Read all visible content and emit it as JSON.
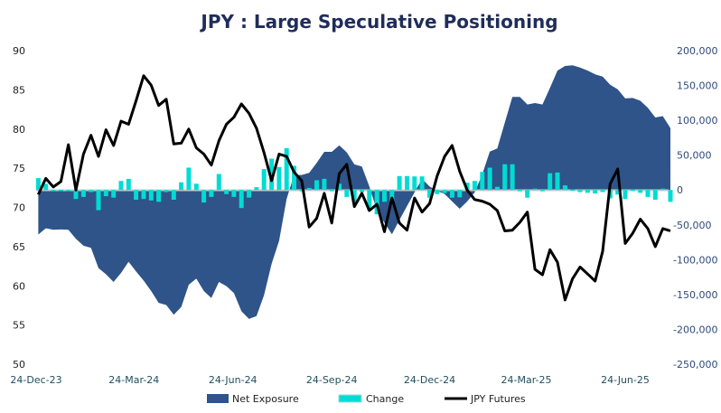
{
  "chart_data": {
    "type": "combo",
    "title": "JPY : Large Speculative Positioning",
    "colors": {
      "net_exposure": "#2E5489",
      "change": "#00DCD4",
      "jpy_futures": "#000000",
      "title": "#1F2D5A"
    },
    "legend_position": "bottom",
    "grid": false,
    "x_start": "2023-12-26",
    "x_step_days": 7,
    "x_ticks": [
      "24-Dec-23",
      "24-Mar-24",
      "24-Jun-24",
      "24-Sep-24",
      "24-Dec-24",
      "24-Mar-25",
      "24-Jun-25"
    ],
    "x_tick_dates": [
      "2023-12-24",
      "2024-03-24",
      "2024-06-24",
      "2024-09-24",
      "2024-12-24",
      "2025-03-24",
      "2025-06-24"
    ],
    "left_axis": {
      "min": 50,
      "max": 90,
      "ticks": [
        "50",
        "55",
        "60",
        "65",
        "70",
        "75",
        "80",
        "85",
        "90"
      ]
    },
    "right_axis": {
      "min": -250000,
      "max": 200000,
      "ticks": [
        "-250,000",
        "-200,000",
        "-150,000",
        "-100,000",
        "-50,000",
        "0",
        "50,000",
        "100,000",
        "150,000",
        "200,000"
      ]
    },
    "series": [
      {
        "name": "Net Exposure",
        "type": "area",
        "axis": "right",
        "values": [
          -63900,
          -55000,
          -57000,
          -56600,
          -57000,
          -70000,
          -80000,
          -83000,
          -112000,
          -121000,
          -132000,
          -119000,
          -103000,
          -117000,
          -130000,
          -145000,
          -162000,
          -165000,
          -179000,
          -168000,
          -136000,
          -127000,
          -145000,
          -155000,
          -132000,
          -138000,
          -148000,
          -174000,
          -185000,
          -181000,
          -151000,
          -106000,
          -73000,
          -13000,
          21600,
          21600,
          24600,
          38900,
          54800,
          54800,
          63900,
          54000,
          36700,
          33700,
          5000,
          -30000,
          -47000,
          -63500,
          -43000,
          -23000,
          -3500,
          16000,
          5000,
          -1300,
          -5700,
          -16500,
          -27000,
          -16500,
          -3500,
          22600,
          55000,
          59600,
          96600,
          133500,
          133500,
          122700,
          124800,
          122700,
          146600,
          171400,
          178000,
          179000,
          175700,
          171400,
          166000,
          162700,
          151000,
          144400,
          131400,
          132000,
          128000,
          118000,
          104000,
          106000,
          88700
        ]
      },
      {
        "name": "Change",
        "type": "bar",
        "axis": "right",
        "values": [
          17000,
          8900,
          -2000,
          400,
          -400,
          -13000,
          -10000,
          -3000,
          -29000,
          -9000,
          -11000,
          13000,
          16000,
          -14000,
          -13000,
          -15000,
          -17000,
          -3000,
          -14000,
          11000,
          32000,
          9000,
          -18000,
          -10000,
          23000,
          -6000,
          -10000,
          -26000,
          -11000,
          4000,
          30000,
          45000,
          33000,
          60000,
          34600,
          0,
          3000,
          14000,
          16000,
          0,
          9000,
          -10000,
          -17000,
          -3000,
          -29000,
          -35000,
          -17000,
          -16500,
          20000,
          20000,
          19500,
          19500,
          -11000,
          -6000,
          -4400,
          -11000,
          -10500,
          10500,
          13000,
          26000,
          32000,
          4600,
          37000,
          37000,
          0,
          -11000,
          2000,
          -2000,
          24000,
          25000,
          6600,
          1000,
          -3000,
          -4000,
          -5000,
          -3000,
          -12000,
          -6600,
          -13000,
          600,
          -4000,
          -10000,
          -14000,
          2000,
          -17000
        ]
      },
      {
        "name": "JPY Futures",
        "type": "line",
        "axis": "left",
        "values": [
          71.65,
          73.7,
          72.6,
          73.3,
          78.0,
          72.2,
          76.8,
          79.2,
          76.5,
          79.9,
          77.9,
          81.0,
          80.6,
          83.6,
          86.8,
          85.6,
          83.0,
          83.8,
          78.1,
          78.2,
          80.0,
          77.6,
          76.8,
          75.4,
          78.5,
          80.6,
          81.5,
          83.2,
          82.0,
          80.1,
          77.0,
          73.4,
          76.8,
          76.5,
          74.5,
          73.4,
          67.5,
          68.6,
          71.8,
          68.0,
          74.3,
          75.5,
          70.1,
          71.8,
          69.6,
          70.4,
          66.9,
          71.2,
          68.0,
          67.1,
          71.2,
          69.4,
          70.5,
          74.0,
          76.5,
          77.9,
          74.6,
          72.2,
          71.0,
          70.8,
          70.4,
          69.6,
          67.0,
          67.1,
          68.1,
          69.4,
          62.1,
          61.4,
          64.6,
          63.0,
          58.2,
          60.9,
          62.4,
          61.5,
          60.6,
          64.4,
          73.0,
          74.9,
          65.4,
          66.7,
          68.5,
          67.3,
          65.0,
          67.3,
          67.0
        ]
      }
    ]
  }
}
